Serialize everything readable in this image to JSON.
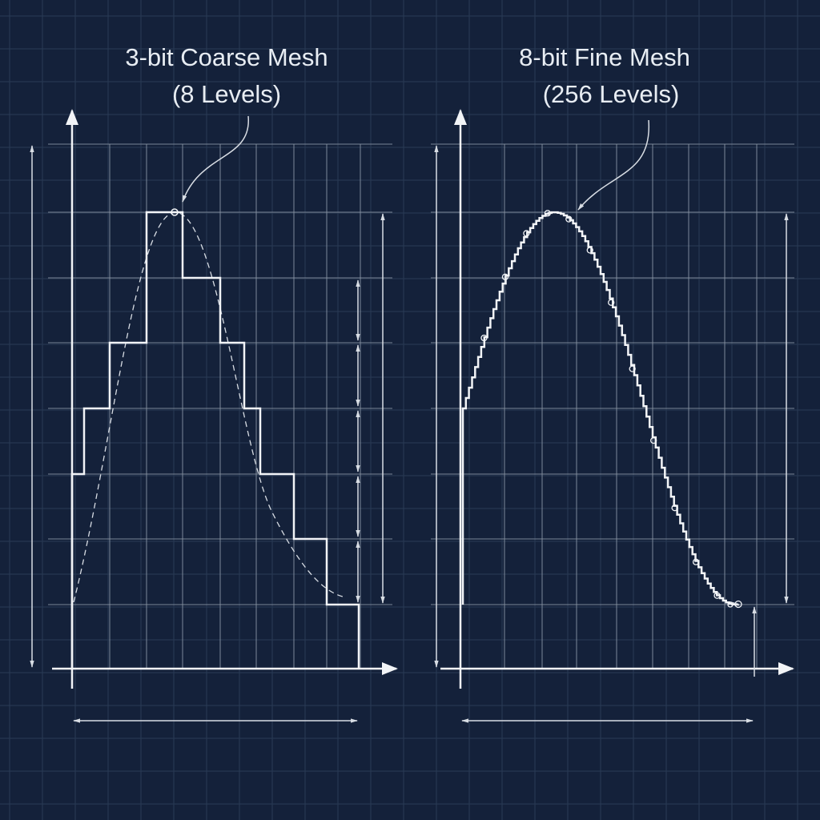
{
  "panels": [
    {
      "title": "3-bit Coarse Mesh",
      "subtitle": "(8 Levels)"
    },
    {
      "title": "8-bit Fine Mesh",
      "subtitle": "(256 Levels)"
    }
  ]
}
